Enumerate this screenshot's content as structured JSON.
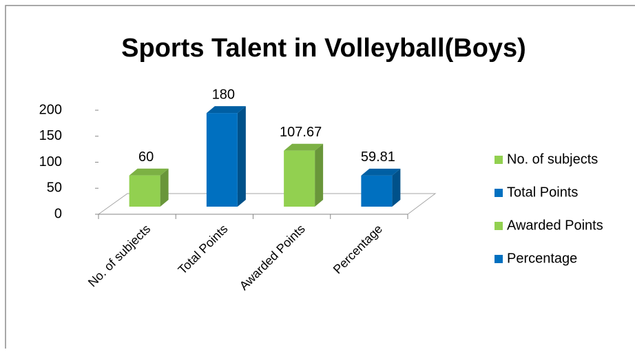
{
  "chart_data": {
    "type": "bar3d",
    "title": "Sports Talent in Volleyball(Boys)",
    "categories": [
      "No. of subjects",
      "Total Points",
      "Awarded Points",
      "Percentage"
    ],
    "values": [
      60,
      180,
      107.67,
      59.81
    ],
    "colors": [
      "#92d050",
      "#0070c0",
      "#92d050",
      "#0070c0"
    ],
    "ylim": [
      0,
      200
    ],
    "yticks": [
      0,
      50,
      100,
      150,
      200
    ],
    "grid": false,
    "legend": "right"
  }
}
